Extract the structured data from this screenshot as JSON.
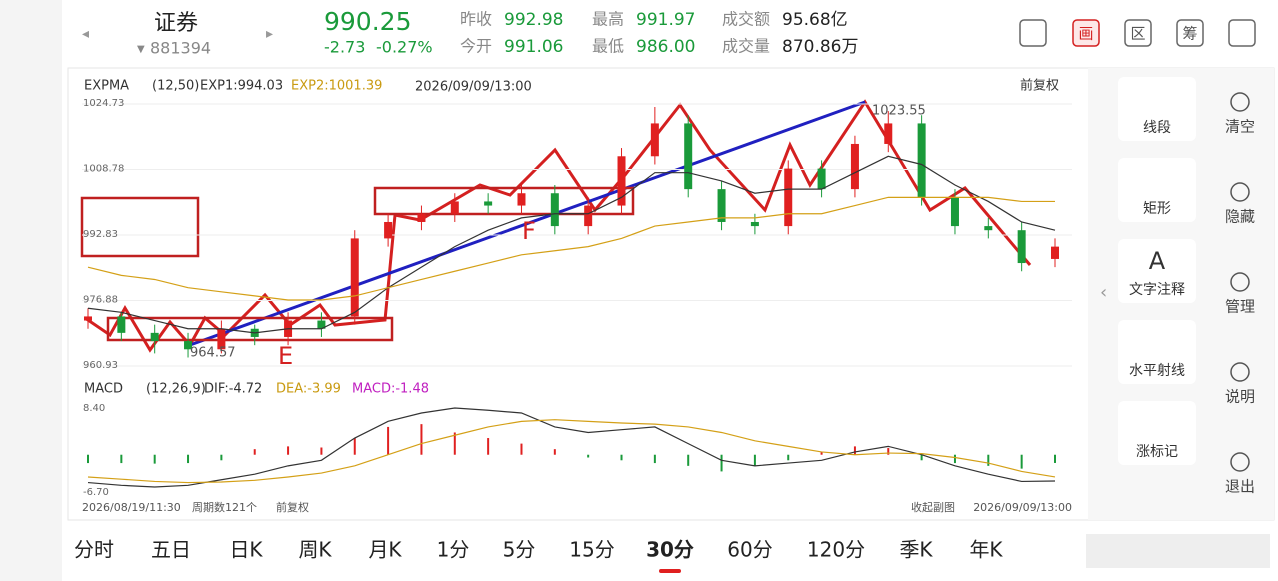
{
  "header": {
    "name": "证券",
    "code": "881394",
    "price": "990.25",
    "change": "-2.73",
    "change_pct": "-0.27%",
    "stats": [
      {
        "label": "昨收",
        "value": "992.98"
      },
      {
        "label": "最高",
        "value": "991.97"
      },
      {
        "label": "成交额",
        "value": "95.68亿"
      },
      {
        "label": "今开",
        "value": "991.06"
      },
      {
        "label": "最低",
        "value": "986.00"
      },
      {
        "label": "成交量",
        "value": "870.86万"
      }
    ],
    "icon_labels": [
      "画",
      "区",
      "筹"
    ]
  },
  "chart_data": [
    {
      "type": "candlestick",
      "indicator": "EXPMA",
      "params": "(12,50)",
      "exp1_label": "EXP1:994.03",
      "exp2_label": "EXP2:1001.39",
      "time": "2026/09/09/13:00",
      "adjust": "前复权",
      "open": [
        972,
        973,
        969,
        967,
        965,
        970,
        968,
        972,
        973,
        992,
        996,
        998,
        1001,
        1000,
        1003,
        995,
        1000,
        1012,
        1020,
        1004,
        996,
        995,
        1009,
        1004,
        1015,
        1020,
        1002,
        995,
        994,
        987
      ],
      "high": [
        975,
        974,
        971,
        969,
        972,
        971,
        974,
        974,
        994,
        998,
        1000,
        1003,
        1003,
        1005,
        1005,
        1002,
        1014,
        1024,
        1022,
        1006,
        998,
        1011,
        1011,
        1017,
        1023,
        1022,
        1004,
        997,
        996,
        992
      ],
      "low": [
        970,
        967,
        964,
        963,
        964,
        966,
        966,
        968,
        971,
        990,
        994,
        996,
        998,
        998,
        993,
        993,
        998,
        1010,
        1002,
        994,
        993,
        993,
        1002,
        1002,
        1013,
        1000,
        993,
        992,
        984,
        985
      ],
      "close": [
        973,
        969,
        967,
        965,
        970,
        968,
        972,
        970,
        992,
        996,
        998,
        1001,
        1000,
        1003,
        995,
        1000,
        1012,
        1020,
        1004,
        996,
        995,
        1009,
        1004,
        1015,
        1020,
        1002,
        995,
        994,
        986,
        990
      ],
      "exp1": [
        975,
        974,
        972,
        970,
        970,
        969,
        970,
        970,
        974,
        980,
        985,
        990,
        994,
        997,
        998,
        998,
        1002,
        1008,
        1008,
        1006,
        1003,
        1004,
        1004,
        1008,
        1012,
        1010,
        1005,
        1001,
        996,
        994
      ],
      "exp2": [
        985,
        983,
        982,
        980,
        979,
        978,
        977,
        977,
        978,
        980,
        982,
        984,
        986,
        988,
        989,
        990,
        992,
        995,
        996,
        997,
        997,
        998,
        998,
        1000,
        1002,
        1002,
        1002,
        1002,
        1001,
        1001
      ],
      "ylim": [
        960.93,
        1024.73
      ],
      "yticks": [
        1024.73,
        1008.78,
        992.83,
        976.88,
        960.93
      ],
      "annotations": [
        "1023.55",
        "964.57",
        "E",
        "F"
      ]
    },
    {
      "type": "macd",
      "indicator": "MACD",
      "params": "(12,26,9)",
      "dif_label": "DIF:-4.72",
      "dea_label": "DEA:-3.99",
      "macd_label": "MACD:-1.48",
      "ylim": [
        -6.7,
        8.4
      ],
      "yticks": [
        {
          "value": 8.4,
          "label": "8.40"
        },
        {
          "value": -6.7,
          "label": "-6.70"
        }
      ],
      "macd": [
        -1.5,
        -1.5,
        -1.6,
        -1.5,
        -1,
        1,
        1.5,
        1.3,
        3,
        5,
        5.5,
        4,
        3,
        2,
        1,
        -0.5,
        -1,
        -1.5,
        -2,
        -3,
        -2,
        -1,
        0.5,
        1.5,
        1.2,
        -1,
        -1.5,
        -2,
        -2.5,
        -1.48
      ],
      "dif": [
        -5,
        -5.5,
        -5.8,
        -5.5,
        -4.5,
        -3.5,
        -2,
        -1,
        3,
        6,
        7.5,
        8.4,
        8,
        7.5,
        5,
        4,
        4.5,
        5,
        2,
        -1,
        -2,
        -1.5,
        -1,
        0.5,
        1.5,
        0,
        -2,
        -3.5,
        -4.8,
        -4.72
      ],
      "dea": [
        -4,
        -4.4,
        -4.8,
        -5,
        -4.9,
        -4.6,
        -4,
        -3.3,
        -2,
        0,
        2,
        3.5,
        5,
        6,
        6.3,
        6,
        5.7,
        5.5,
        5,
        4,
        2.5,
        1.5,
        0.5,
        0,
        0.3,
        0.2,
        -0.5,
        -1.5,
        -3,
        -3.99
      ]
    }
  ],
  "footer": {
    "start": "2026/08/19/11:30",
    "count": "周期数121个",
    "adjust": "前复权",
    "collapse": "收起副图",
    "end": "2026/09/09/13:00"
  },
  "tools": [
    "线段",
    "矩形",
    "文字注释",
    "水平射线",
    "涨标记"
  ],
  "side": [
    "清空",
    "隐藏",
    "管理",
    "说明",
    "退出"
  ],
  "tabs": [
    "分时",
    "五日",
    "日K",
    "周K",
    "月K",
    "1分",
    "5分",
    "15分",
    "30分",
    "60分",
    "120分",
    "季K",
    "年K"
  ]
}
